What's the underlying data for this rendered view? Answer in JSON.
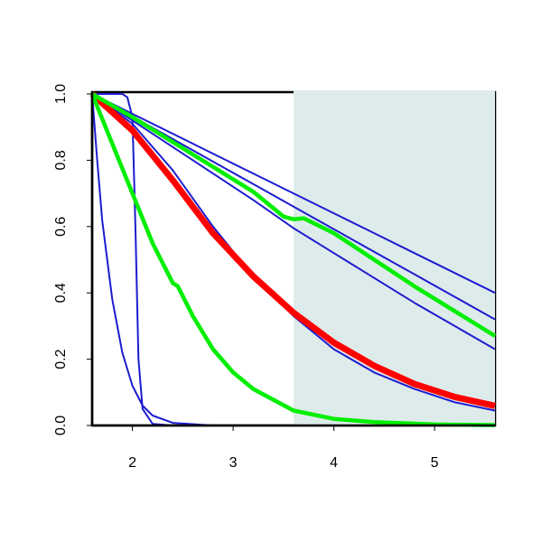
{
  "chart_data": {
    "type": "line",
    "xlim": [
      1.6,
      5.6
    ],
    "ylim": [
      0,
      1
    ],
    "xticks": [
      2,
      3,
      4,
      5
    ],
    "yticks": [
      {
        "value": 0,
        "label": "0.0"
      },
      0.2,
      0.4,
      0.6,
      0.8,
      {
        "value": 1,
        "label": "1.0"
      }
    ],
    "shade": {
      "from": 3.6,
      "color": "#deebeb"
    },
    "series": [
      {
        "color": "#1c1cd0",
        "width": 2,
        "x": [
          1.6,
          1.9,
          1.95,
          2.0,
          2.03,
          2.06,
          2.1,
          2.2,
          2.4,
          5.6
        ],
        "values": [
          1,
          1,
          0.99,
          0.93,
          0.6,
          0.2,
          0.05,
          0.005,
          0,
          0
        ]
      },
      {
        "color": "#1c1cd0",
        "width": 2,
        "x": [
          1.6,
          1.65,
          1.7,
          1.8,
          1.9,
          2.0,
          2.1,
          2.2,
          2.4,
          2.8,
          5.6
        ],
        "values": [
          1,
          0.8,
          0.62,
          0.38,
          0.22,
          0.12,
          0.06,
          0.03,
          0.008,
          0,
          0
        ]
      },
      {
        "color": "#1c1cd0",
        "width": 2,
        "x": [
          1.6,
          2.0,
          2.4,
          2.8,
          3.2,
          3.6,
          4.0,
          4.4,
          4.8,
          5.2,
          5.6
        ],
        "values": [
          1,
          0.91,
          0.77,
          0.6,
          0.45,
          0.33,
          0.23,
          0.16,
          0.11,
          0.07,
          0.045
        ]
      },
      {
        "color": "#1c1cd0",
        "width": 2,
        "x": [
          1.6,
          2.0,
          2.4,
          2.8,
          3.2,
          3.6,
          4.0,
          4.4,
          4.8,
          5.2,
          5.6
        ],
        "values": [
          1,
          0.94,
          0.88,
          0.82,
          0.76,
          0.7,
          0.64,
          0.58,
          0.52,
          0.46,
          0.4
        ]
      },
      {
        "color": "#1c1cd0",
        "width": 2,
        "x": [
          1.6,
          2.0,
          2.4,
          2.8,
          3.2,
          3.6,
          4.0,
          4.4,
          4.8,
          5.2,
          5.6
        ],
        "values": [
          1,
          0.932,
          0.864,
          0.796,
          0.728,
          0.66,
          0.592,
          0.524,
          0.456,
          0.388,
          0.32
        ]
      },
      {
        "color": "#1c1cd0",
        "width": 2,
        "x": [
          1.6,
          2.0,
          2.4,
          2.8,
          3.2,
          3.6,
          4.0,
          4.4,
          4.8,
          5.2,
          5.6
        ],
        "values": [
          1,
          0.92,
          0.84,
          0.76,
          0.68,
          0.595,
          0.52,
          0.445,
          0.37,
          0.3,
          0.23
        ]
      },
      {
        "color": "#ff0000",
        "width": 7,
        "x": [
          1.6,
          2.0,
          2.4,
          2.8,
          3.2,
          3.6,
          4.0,
          4.4,
          4.8,
          5.2,
          5.6
        ],
        "values": [
          1,
          0.89,
          0.74,
          0.58,
          0.45,
          0.34,
          0.25,
          0.18,
          0.125,
          0.086,
          0.059
        ]
      },
      {
        "color": "#00ee00",
        "width": 4.5,
        "x": [
          1.6,
          2.0,
          2.4,
          2.8,
          3.2,
          3.5,
          3.6,
          3.7,
          4.0,
          4.4,
          4.8,
          5.2,
          5.6
        ],
        "values": [
          1,
          0.93,
          0.855,
          0.78,
          0.705,
          0.63,
          0.622,
          0.625,
          0.58,
          0.5,
          0.42,
          0.345,
          0.27
        ]
      },
      {
        "color": "#00ee00",
        "width": 4.5,
        "x": [
          1.6,
          1.8,
          2.0,
          2.2,
          2.4,
          2.45,
          2.6,
          2.8,
          3.0,
          3.2,
          3.6,
          4.0,
          4.4,
          5.0,
          5.6
        ],
        "values": [
          1,
          0.85,
          0.7,
          0.55,
          0.43,
          0.42,
          0.33,
          0.23,
          0.16,
          0.11,
          0.045,
          0.02,
          0.01,
          0.003,
          0.001
        ]
      }
    ]
  }
}
